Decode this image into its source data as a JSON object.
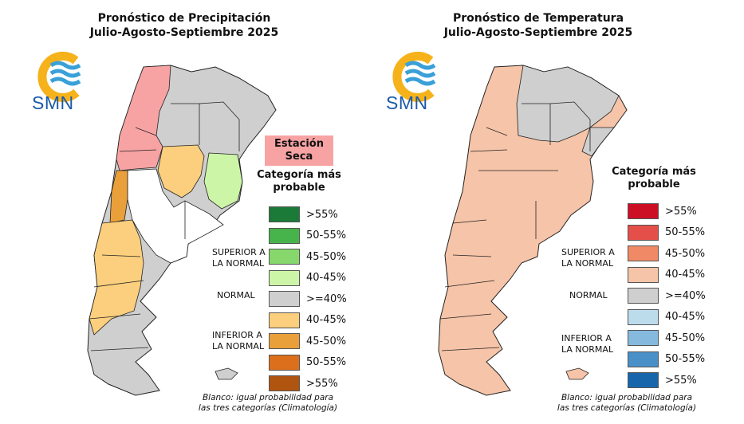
{
  "left": {
    "title_line1": "Pronóstico de Precipitación",
    "title_line2": "Julio-Agosto-Septiembre 2025",
    "logo_text": "SMN",
    "badge": [
      "Estación",
      "Seca"
    ],
    "legend_title": [
      "Categoría más",
      "probable"
    ],
    "categories": [
      {
        "label": ">55%",
        "color": "#1b7a37"
      },
      {
        "label": "50-55%",
        "color": "#46b34b"
      },
      {
        "label": "45-50%",
        "color": "#86d86c"
      },
      {
        "label": "40-45%",
        "color": "#cdf5a8"
      },
      {
        "label": ">=40%",
        "color": "#cfcfcf"
      },
      {
        "label": "40-45%",
        "color": "#fbcf7d"
      },
      {
        "label": "45-50%",
        "color": "#e9a03a"
      },
      {
        "label": "50-55%",
        "color": "#dc6f1c"
      },
      {
        "label": ">55%",
        "color": "#b05510"
      }
    ],
    "group_above": [
      "SUPERIOR A",
      "LA NORMAL"
    ],
    "group_normal": "NORMAL",
    "group_below": [
      "INFERIOR A",
      "LA NORMAL"
    ],
    "footnote": [
      "Blanco: igual probabilidad para",
      "las tres categorías (Climatología)"
    ]
  },
  "right": {
    "title_line1": "Pronóstico de Temperatura",
    "title_line2": "Julio-Agosto-Septiembre 2025",
    "logo_text": "SMN",
    "legend_title": [
      "Categoría más",
      "probable"
    ],
    "categories": [
      {
        "label": ">55%",
        "color": "#cc0f25"
      },
      {
        "label": "50-55%",
        "color": "#e45049"
      },
      {
        "label": "45-50%",
        "color": "#f08a66"
      },
      {
        "label": "40-45%",
        "color": "#f6c4a8"
      },
      {
        "label": ">=40%",
        "color": "#cfcfcf"
      },
      {
        "label": "40-45%",
        "color": "#bcdcec"
      },
      {
        "label": "45-50%",
        "color": "#86b9de"
      },
      {
        "label": "50-55%",
        "color": "#4a90c8"
      },
      {
        "label": ">55%",
        "color": "#1765ab"
      }
    ],
    "group_above": [
      "SUPERIOR A",
      "LA NORMAL"
    ],
    "group_normal": "NORMAL",
    "group_below": [
      "INFERIOR A",
      "LA NORMAL"
    ],
    "footnote": [
      "Blanco: igual probabilidad para",
      "las tres categorías (Climatología)"
    ]
  },
  "colors": {
    "logo_ring": "#f6b21b",
    "logo_waves": "#3aa0d8",
    "map_border": "#222222",
    "grey": "#cfcfcf",
    "red": "#f7a3a3",
    "orange": "#fbcf7d",
    "green": "#cdf5a8",
    "salmon": "#f6c4a8",
    "white": "#ffffff"
  }
}
